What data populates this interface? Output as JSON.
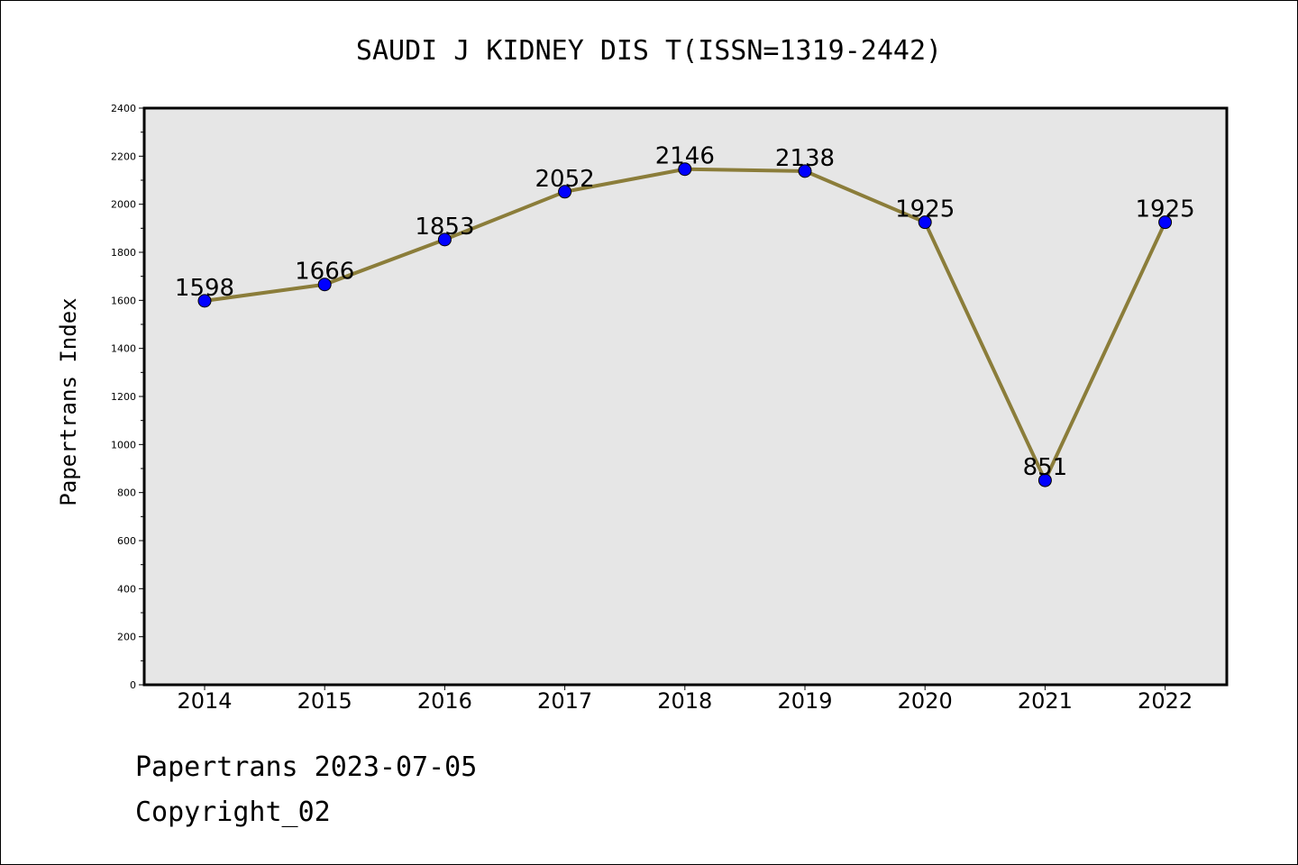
{
  "chart_data": {
    "type": "line",
    "title": "SAUDI J KIDNEY DIS T(ISSN=1319-2442)",
    "xlabel": "",
    "ylabel": "Papertrans Index",
    "categories": [
      "2014",
      "2015",
      "2016",
      "2017",
      "2018",
      "2019",
      "2020",
      "2021",
      "2022"
    ],
    "values": [
      1598,
      1666,
      1853,
      2052,
      2146,
      2138,
      1925,
      851,
      1925
    ],
    "ylim": [
      0,
      2400
    ],
    "yticks": [
      0,
      200,
      400,
      600,
      800,
      1000,
      1200,
      1400,
      1600,
      1800,
      2000,
      2200,
      2400
    ],
    "grid": false,
    "data_labels": true,
    "colors": {
      "line": "#8b7d3a",
      "marker": "#0000ff",
      "plot_background": "#e6e6e6"
    }
  },
  "footer": {
    "source": "Papertrans 2023-07-05",
    "copyright": "Copyright_02"
  }
}
